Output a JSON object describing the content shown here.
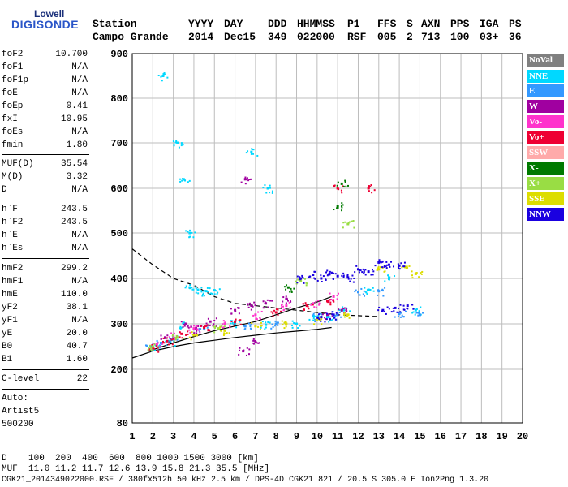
{
  "logo": {
    "line1": "Lowell",
    "line2": "DIGISONDE"
  },
  "header": {
    "labels": [
      "Station",
      "YYYY",
      "DAY",
      "DDD",
      "HHMMSS",
      "P1",
      "FFS",
      "S",
      "AXN",
      "PPS",
      "IGA",
      "PS"
    ],
    "values": [
      "Campo Grande",
      "2014",
      "Dec15",
      "349",
      "022000",
      "RSF",
      "005",
      "2",
      "713",
      "100",
      "03+",
      "36"
    ]
  },
  "params": [
    {
      "k": "foF2",
      "v": "10.700"
    },
    {
      "k": "foF1",
      "v": "N/A"
    },
    {
      "k": "foF1p",
      "v": "N/A"
    },
    {
      "k": "foE",
      "v": "N/A"
    },
    {
      "k": "foEp",
      "v": "0.41"
    },
    {
      "k": "fxI",
      "v": "10.95"
    },
    {
      "k": "foEs",
      "v": "N/A"
    },
    {
      "k": "fmin",
      "v": "1.80"
    },
    {
      "k": "MUF(D)",
      "v": "35.54"
    },
    {
      "k": "M(D)",
      "v": "3.32"
    },
    {
      "k": "D",
      "v": "N/A"
    },
    {
      "k": "h`F",
      "v": "243.5"
    },
    {
      "k": "h`F2",
      "v": "243.5"
    },
    {
      "k": "h`E",
      "v": "N/A"
    },
    {
      "k": "h`Es",
      "v": "N/A"
    },
    {
      "k": "hmF2",
      "v": "299.2"
    },
    {
      "k": "hmF1",
      "v": "N/A"
    },
    {
      "k": "hmE",
      "v": "110.0"
    },
    {
      "k": "yF2",
      "v": "38.1"
    },
    {
      "k": "yF1",
      "v": "N/A"
    },
    {
      "k": "yE",
      "v": "20.0"
    },
    {
      "k": "B0",
      "v": "40.7"
    },
    {
      "k": "B1",
      "v": "1.60"
    },
    {
      "k": "C-level",
      "v": "22"
    }
  ],
  "auto": {
    "l1": "Auto:",
    "l2": "Artist5",
    "l3": "500200"
  },
  "footer": {
    "d_line": "D    100  200  400  600  800 1000 1500 3000 [km]",
    "muf_line": "MUF  11.0 11.2 11.7 12.6 13.9 15.8 21.3 35.5 [MHz]",
    "info_line": "CGK21_2014349022000.RSF / 380fx512h 50 kHz 2.5 km / DPS-4D CGK21 821 / 20.5 S 305.0 E Ion2Png 1.3.20"
  },
  "legend": [
    {
      "label": "NoVal",
      "color": "#808080"
    },
    {
      "label": "NNE",
      "color": "#00d8ff"
    },
    {
      "label": "E",
      "color": "#3399ff"
    },
    {
      "label": "W",
      "color": "#a000a0"
    },
    {
      "label": "Vo-",
      "color": "#ff33cc"
    },
    {
      "label": "Vo+",
      "color": "#ee0033"
    },
    {
      "label": "SSW",
      "color": "#ffaaaa"
    },
    {
      "label": "X-",
      "color": "#007a00"
    },
    {
      "label": "X+",
      "color": "#99dd44"
    },
    {
      "label": "SSE",
      "color": "#dddd00"
    },
    {
      "label": "NNW",
      "color": "#1a00e0"
    }
  ],
  "chart_data": {
    "type": "scatter",
    "x_ticks": [
      1,
      2,
      3,
      4,
      5,
      6,
      7,
      8,
      9,
      10,
      11,
      12,
      13,
      14,
      15,
      16,
      17,
      18,
      19,
      20
    ],
    "y_ticks": [
      80,
      200,
      300,
      400,
      500,
      600,
      700,
      800,
      900
    ],
    "xlim": [
      1,
      20
    ],
    "ylim": [
      80,
      900
    ],
    "grid": true,
    "legend_position": "right",
    "series": [
      {
        "name": "NNE",
        "points": [
          [
            2.3,
            250
          ],
          [
            2.8,
            262
          ],
          [
            3.5,
            300
          ],
          [
            3.8,
            380
          ],
          [
            4.2,
            375
          ],
          [
            4.6,
            372
          ],
          [
            5.0,
            374
          ],
          [
            6.0,
            300
          ],
          [
            7.5,
            298
          ],
          [
            9.0,
            300
          ],
          [
            9.8,
            318
          ],
          [
            10.5,
            315
          ],
          [
            11.3,
            330
          ],
          [
            12.5,
            375
          ],
          [
            13.5,
            400
          ],
          [
            14.8,
            330
          ],
          [
            3.2,
            700
          ],
          [
            3.5,
            620
          ],
          [
            3.8,
            500
          ],
          [
            2.5,
            850
          ],
          [
            6.8,
            680
          ],
          [
            7.6,
            600
          ]
        ]
      },
      {
        "name": "E",
        "points": [
          [
            1.9,
            250
          ],
          [
            2.4,
            258
          ],
          [
            3.0,
            270
          ],
          [
            4.5,
            290
          ],
          [
            6.5,
            295
          ],
          [
            8.0,
            300
          ],
          [
            10.0,
            315
          ],
          [
            11.0,
            320
          ],
          [
            12.0,
            370
          ],
          [
            13.0,
            372
          ],
          [
            14.0,
            322
          ],
          [
            15.0,
            320
          ]
        ]
      },
      {
        "name": "W",
        "points": [
          [
            2.6,
            270
          ],
          [
            3.6,
            300
          ],
          [
            4.8,
            305
          ],
          [
            6.0,
            330
          ],
          [
            6.8,
            340
          ],
          [
            7.5,
            345
          ],
          [
            8.5,
            355
          ],
          [
            10.5,
            320
          ],
          [
            11.2,
            330
          ],
          [
            6.5,
            620
          ],
          [
            6.4,
            240
          ],
          [
            7.0,
            260
          ],
          [
            4.1,
            290
          ]
        ]
      },
      {
        "name": "Vo-",
        "points": [
          [
            2.2,
            255
          ],
          [
            3.0,
            275
          ],
          [
            4.0,
            290
          ],
          [
            5.5,
            300
          ],
          [
            7.0,
            320
          ],
          [
            8.5,
            340
          ],
          [
            9.8,
            345
          ],
          [
            10.8,
            360
          ]
        ]
      },
      {
        "name": "Vo+",
        "points": [
          [
            2.0,
            248
          ],
          [
            2.7,
            262
          ],
          [
            3.4,
            278
          ],
          [
            4.5,
            292
          ],
          [
            6.0,
            305
          ],
          [
            8.0,
            325
          ],
          [
            9.5,
            340
          ],
          [
            10.5,
            350
          ],
          [
            11.0,
            600
          ],
          [
            12.5,
            600
          ]
        ]
      },
      {
        "name": "X-",
        "points": [
          [
            11.0,
            560
          ],
          [
            11.2,
            610
          ],
          [
            8.6,
            380
          ]
        ]
      },
      {
        "name": "X+",
        "points": [
          [
            2.0,
            250
          ],
          [
            3.2,
            270
          ],
          [
            5.2,
            290
          ],
          [
            9.2,
            395
          ],
          [
            11.5,
            520
          ]
        ]
      },
      {
        "name": "SSE",
        "points": [
          [
            4.0,
            275
          ],
          [
            5.5,
            285
          ],
          [
            7.0,
            295
          ],
          [
            8.5,
            300
          ],
          [
            10.0,
            310
          ],
          [
            11.5,
            320
          ],
          [
            13.0,
            420
          ],
          [
            14.3,
            425
          ],
          [
            14.8,
            410
          ]
        ]
      },
      {
        "name": "NNW",
        "points": [
          [
            9.2,
            400
          ],
          [
            9.8,
            408
          ],
          [
            10.2,
            400
          ],
          [
            10.6,
            410
          ],
          [
            11.0,
            405
          ],
          [
            11.5,
            402
          ],
          [
            12.0,
            420
          ],
          [
            12.5,
            415
          ],
          [
            13.0,
            435
          ],
          [
            13.5,
            430
          ],
          [
            14.0,
            428
          ],
          [
            13.2,
            330
          ],
          [
            13.8,
            335
          ],
          [
            14.4,
            340
          ],
          [
            10.2,
            315
          ],
          [
            10.8,
            320
          ]
        ]
      }
    ],
    "curves": [
      {
        "name": "profile",
        "style": "solid",
        "points": [
          [
            1,
            225
          ],
          [
            2,
            240
          ],
          [
            3,
            250
          ],
          [
            4,
            258
          ],
          [
            5,
            264
          ],
          [
            6,
            270
          ],
          [
            7,
            275
          ],
          [
            8,
            280
          ],
          [
            9,
            284
          ],
          [
            10,
            288
          ],
          [
            10.7,
            292
          ]
        ]
      },
      {
        "name": "trace",
        "style": "solid",
        "points": [
          [
            1.8,
            240
          ],
          [
            3,
            258
          ],
          [
            4,
            272
          ],
          [
            5,
            285
          ],
          [
            6,
            295
          ],
          [
            7,
            305
          ],
          [
            8,
            320
          ],
          [
            9,
            335
          ],
          [
            10,
            348
          ],
          [
            10.7,
            360
          ]
        ]
      },
      {
        "name": "muf-d",
        "style": "dashed",
        "points": [
          [
            1,
            465
          ],
          [
            2,
            430
          ],
          [
            3,
            400
          ],
          [
            4,
            385
          ],
          [
            5,
            360
          ],
          [
            6,
            345
          ],
          [
            7,
            340
          ],
          [
            8,
            335
          ],
          [
            9,
            330
          ],
          [
            10,
            325
          ],
          [
            11,
            320
          ],
          [
            12,
            318
          ],
          [
            13,
            316
          ]
        ]
      }
    ],
    "vertical_marker": [
      {
        "x": 2.0
      },
      {
        "x": 3.5
      }
    ]
  }
}
